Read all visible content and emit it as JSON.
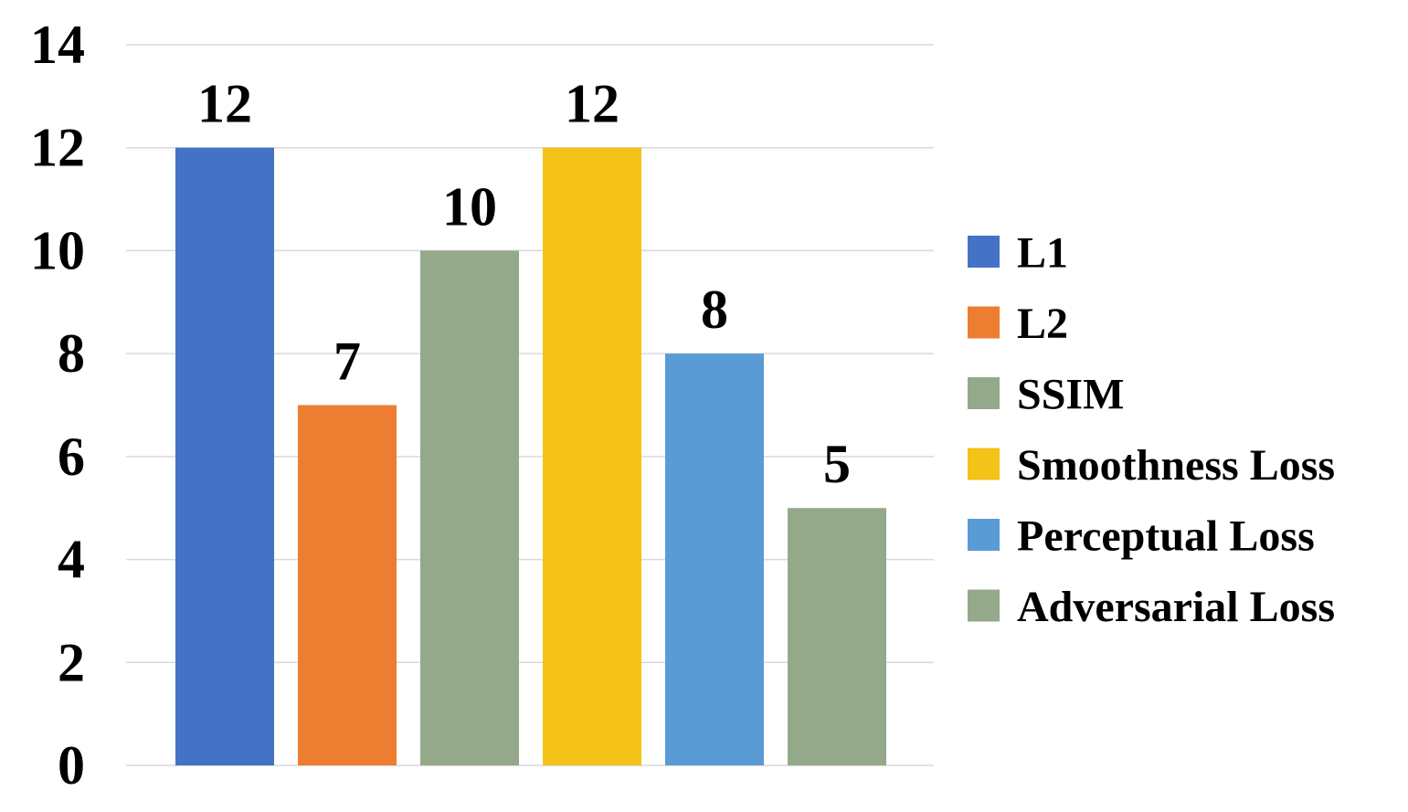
{
  "chart_data": {
    "type": "bar",
    "title": "",
    "xlabel": "",
    "ylabel": "",
    "ylim": [
      0,
      14
    ],
    "yticks": [
      0,
      2,
      4,
      6,
      8,
      10,
      12,
      14
    ],
    "grid": true,
    "legend_position": "right",
    "series": [
      {
        "name": "L1",
        "value": 12,
        "color": "#4472C4"
      },
      {
        "name": "L2",
        "value": 7,
        "color": "#ED7D31"
      },
      {
        "name": "SSIM",
        "value": 10,
        "color": "#94A98A"
      },
      {
        "name": "Smoothness Loss",
        "value": 12,
        "color": "#F5C218"
      },
      {
        "name": "Perceptual Loss",
        "value": 8,
        "color": "#5B9BD5"
      },
      {
        "name": "Adversarial Loss",
        "value": 5,
        "color": "#94A98A"
      }
    ]
  }
}
